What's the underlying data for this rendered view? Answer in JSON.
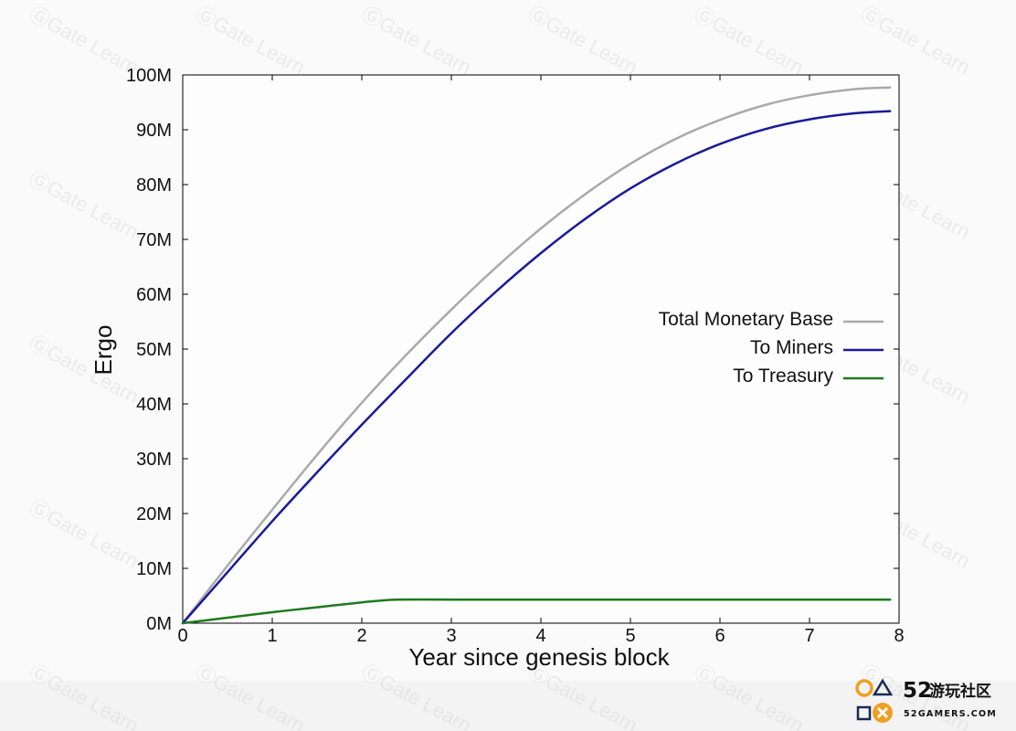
{
  "chart_data": {
    "type": "line",
    "title": "",
    "xlabel": "Year since genesis block",
    "ylabel": "Ergo",
    "xlim": [
      0,
      8
    ],
    "ylim": [
      0,
      100000000
    ],
    "x_ticks": [
      "0",
      "1",
      "2",
      "3",
      "4",
      "5",
      "6",
      "7",
      "8"
    ],
    "y_ticks": [
      "0M",
      "10M",
      "20M",
      "30M",
      "40M",
      "50M",
      "60M",
      "70M",
      "80M",
      "90M",
      "100M"
    ],
    "legend_position": "center-right",
    "grid": false,
    "series": [
      {
        "name": "Total Monetary Base",
        "color": "#aaaaaa",
        "x": [
          0,
          0.5,
          1,
          1.5,
          2,
          2.5,
          3,
          3.5,
          4,
          4.5,
          5,
          5.5,
          6,
          6.5,
          7,
          7.5,
          7.9
        ],
        "y": [
          0,
          10500000,
          20700000,
          30700000,
          40200000,
          49000000,
          57200000,
          64900000,
          72000000,
          78300000,
          83800000,
          88300000,
          91800000,
          94500000,
          96300000,
          97400000,
          97700000
        ]
      },
      {
        "name": "To Miners",
        "color": "#1a1a99",
        "x": [
          0,
          0.5,
          1,
          1.5,
          2,
          2.5,
          3,
          3.5,
          4,
          4.5,
          5,
          5.5,
          6,
          6.5,
          7,
          7.5,
          7.9
        ],
        "y": [
          0,
          9300000,
          18600000,
          27500000,
          36200000,
          44600000,
          52900000,
          60500000,
          67500000,
          73800000,
          79300000,
          83800000,
          87400000,
          90100000,
          91900000,
          93000000,
          93400000
        ]
      },
      {
        "name": "To Treasury",
        "color": "#1e7a1e",
        "x": [
          0,
          0.5,
          1,
          1.5,
          2,
          2.2,
          2.4,
          3,
          4,
          5,
          6,
          7,
          7.9
        ],
        "y": [
          0,
          1000000,
          2000000,
          2900000,
          3800000,
          4100000,
          4300000,
          4300000,
          4300000,
          4300000,
          4300000,
          4300000,
          4300000
        ]
      }
    ]
  },
  "watermark": {
    "text": "Gate Learn"
  },
  "logo": {
    "number": "52",
    "cn_text": "游玩社区",
    "domain": "52GAMERS.COM"
  }
}
